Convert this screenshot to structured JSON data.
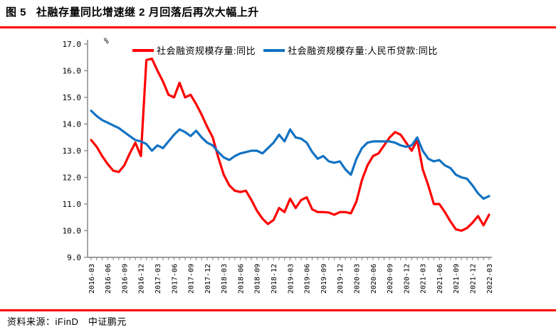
{
  "header": {
    "figure_label": "图 5",
    "title": "社融存量同比增速继 2 月回落后再次大幅上升"
  },
  "footer": {
    "source": "资料来源：iFinD　中证鹏元"
  },
  "colors": {
    "divider": "#ff0000",
    "red_series": "#fe0000",
    "blue_series": "#1272c2",
    "axis": "#7f7f7f",
    "text": "#000000"
  },
  "chart_data": {
    "type": "line",
    "title": "社融存量同比增速继 2 月回落后再次大幅上升",
    "xlabel": "",
    "ylabel": "%",
    "ylim": [
      9.0,
      17.0
    ],
    "ytick_step": 1.0,
    "grid": false,
    "legend_position": "top",
    "y_tick_labels": [
      "9.0",
      "10.0",
      "11.0",
      "12.0",
      "13.0",
      "14.0",
      "15.0",
      "16.0",
      "17.0"
    ],
    "x_tick_labels": [
      "2016-03",
      "2016-06",
      "2016-09",
      "2016-12",
      "2017-03",
      "2017-06",
      "2017-09",
      "2017-12",
      "2018-03",
      "2018-06",
      "2018-09",
      "2018-12",
      "2019-03",
      "2019-06",
      "2019-09",
      "2019-12",
      "2020-03",
      "2020-06",
      "2020-09",
      "2020-12",
      "2021-03",
      "2021-06",
      "2021-09",
      "2021-12",
      "2022-03"
    ],
    "months": [
      "2016-03",
      "2016-04",
      "2016-05",
      "2016-06",
      "2016-07",
      "2016-08",
      "2016-09",
      "2016-10",
      "2016-11",
      "2016-12",
      "2017-01",
      "2017-02",
      "2017-03",
      "2017-04",
      "2017-05",
      "2017-06",
      "2017-07",
      "2017-08",
      "2017-09",
      "2017-10",
      "2017-11",
      "2017-12",
      "2018-01",
      "2018-02",
      "2018-03",
      "2018-04",
      "2018-05",
      "2018-06",
      "2018-07",
      "2018-08",
      "2018-09",
      "2018-10",
      "2018-11",
      "2018-12",
      "2019-01",
      "2019-02",
      "2019-03",
      "2019-04",
      "2019-05",
      "2019-06",
      "2019-07",
      "2019-08",
      "2019-09",
      "2019-10",
      "2019-11",
      "2019-12",
      "2020-01",
      "2020-02",
      "2020-03",
      "2020-04",
      "2020-05",
      "2020-06",
      "2020-07",
      "2020-08",
      "2020-09",
      "2020-10",
      "2020-11",
      "2020-12",
      "2021-01",
      "2021-02",
      "2021-03",
      "2021-04",
      "2021-05",
      "2021-06",
      "2021-07",
      "2021-08",
      "2021-09",
      "2021-10",
      "2021-11",
      "2021-12",
      "2022-01",
      "2022-02",
      "2022-03"
    ],
    "series": [
      {
        "name": "社会融资规模存量:同比",
        "color_key": "red_series",
        "values": [
          13.4,
          13.15,
          12.8,
          12.5,
          12.25,
          12.2,
          12.45,
          12.9,
          13.3,
          12.8,
          16.4,
          16.45,
          16.0,
          15.6,
          15.1,
          15.0,
          15.55,
          15.0,
          15.1,
          14.75,
          14.35,
          13.9,
          13.5,
          12.75,
          12.1,
          11.7,
          11.5,
          11.45,
          11.5,
          11.15,
          10.75,
          10.45,
          10.25,
          10.4,
          10.85,
          10.7,
          11.2,
          10.85,
          11.15,
          11.25,
          10.8,
          10.7,
          10.7,
          10.68,
          10.6,
          10.7,
          10.7,
          10.65,
          11.1,
          11.9,
          12.45,
          12.8,
          12.9,
          13.2,
          13.5,
          13.7,
          13.6,
          13.3,
          13.0,
          13.4,
          12.3,
          11.7,
          11.0,
          11.0,
          10.7,
          10.35,
          10.05,
          10.0,
          10.1,
          10.3,
          10.55,
          10.2,
          10.6
        ]
      },
      {
        "name": "社会融资规模存量:人民币贷款:同比",
        "color_key": "blue_series",
        "values": [
          14.5,
          14.3,
          14.15,
          14.05,
          13.95,
          13.85,
          13.7,
          13.55,
          13.4,
          13.35,
          13.25,
          13.0,
          13.2,
          13.1,
          13.35,
          13.6,
          13.8,
          13.7,
          13.55,
          13.75,
          13.5,
          13.3,
          13.2,
          12.95,
          12.75,
          12.65,
          12.8,
          12.9,
          12.95,
          13.0,
          13.0,
          12.9,
          13.1,
          13.3,
          13.6,
          13.35,
          13.8,
          13.5,
          13.45,
          13.3,
          12.95,
          12.7,
          12.8,
          12.6,
          12.55,
          12.6,
          12.3,
          12.1,
          12.7,
          13.1,
          13.3,
          13.35,
          13.35,
          13.35,
          13.35,
          13.3,
          13.2,
          13.15,
          13.2,
          13.5,
          13.0,
          12.7,
          12.6,
          12.65,
          12.45,
          12.35,
          12.1,
          12.0,
          11.95,
          11.7,
          11.4,
          11.2,
          11.3
        ]
      }
    ]
  }
}
